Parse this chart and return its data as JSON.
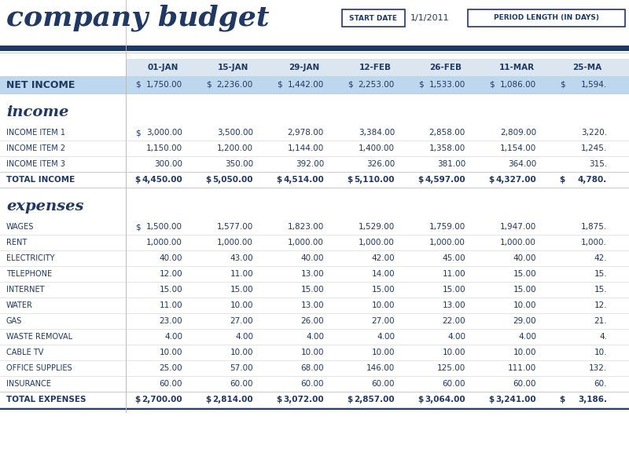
{
  "title": "company budget",
  "start_date_label": "START DATE",
  "start_date_value": "1/1/2011",
  "period_label": "PERIOD LENGTH (IN DAYS)",
  "col_headers": [
    "01-JAN",
    "15-JAN",
    "29-JAN",
    "12-FEB",
    "26-FEB",
    "11-MAR",
    "25-MA"
  ],
  "net_income": {
    "label": "NET INCOME",
    "has_dollar": [
      true,
      true,
      true,
      true,
      true,
      true,
      true
    ],
    "values": [
      "1,750.00",
      "2,236.00",
      "1,442.00",
      "2,253.00",
      "1,533.00",
      "1,086.00",
      "1,594."
    ]
  },
  "income_section": "income",
  "income_rows": [
    {
      "label": "INCOME ITEM 1",
      "has_dollar": true,
      "values": [
        "3,000.00",
        "3,500.00",
        "2,978.00",
        "3,384.00",
        "2,858.00",
        "2,809.00",
        "3,220."
      ]
    },
    {
      "label": "INCOME ITEM 2",
      "has_dollar": false,
      "values": [
        "1,150.00",
        "1,200.00",
        "1,144.00",
        "1,400.00",
        "1,358.00",
        "1,154.00",
        "1,245."
      ]
    },
    {
      "label": "INCOME ITEM 3",
      "has_dollar": false,
      "values": [
        "300.00",
        "350.00",
        "392.00",
        "326.00",
        "381.00",
        "364.00",
        "315."
      ]
    }
  ],
  "total_income": {
    "label": "TOTAL INCOME",
    "has_dollar": true,
    "values": [
      "4,450.00",
      "5,050.00",
      "4,514.00",
      "5,110.00",
      "4,597.00",
      "4,327.00",
      "4,780."
    ]
  },
  "expenses_section": "expenses",
  "expense_rows": [
    {
      "label": "WAGES",
      "has_dollar": true,
      "values": [
        "1,500.00",
        "1,577.00",
        "1,823.00",
        "1,529.00",
        "1,759.00",
        "1,947.00",
        "1,875."
      ]
    },
    {
      "label": "RENT",
      "has_dollar": false,
      "values": [
        "1,000.00",
        "1,000.00",
        "1,000.00",
        "1,000.00",
        "1,000.00",
        "1,000.00",
        "1,000."
      ]
    },
    {
      "label": "ELECTRICITY",
      "has_dollar": false,
      "values": [
        "40.00",
        "43.00",
        "40.00",
        "42.00",
        "45.00",
        "40.00",
        "42."
      ]
    },
    {
      "label": "TELEPHONE",
      "has_dollar": false,
      "values": [
        "12.00",
        "11.00",
        "13.00",
        "14.00",
        "11.00",
        "15.00",
        "15."
      ]
    },
    {
      "label": "INTERNET",
      "has_dollar": false,
      "values": [
        "15.00",
        "15.00",
        "15.00",
        "15.00",
        "15.00",
        "15.00",
        "15."
      ]
    },
    {
      "label": "WATER",
      "has_dollar": false,
      "values": [
        "11.00",
        "10.00",
        "13.00",
        "10.00",
        "13.00",
        "10.00",
        "12."
      ]
    },
    {
      "label": "GAS",
      "has_dollar": false,
      "values": [
        "23.00",
        "27.00",
        "26.00",
        "27.00",
        "22.00",
        "29.00",
        "21."
      ]
    },
    {
      "label": "WASTE REMOVAL",
      "has_dollar": false,
      "values": [
        "4.00",
        "4.00",
        "4.00",
        "4.00",
        "4.00",
        "4.00",
        "4."
      ]
    },
    {
      "label": "CABLE TV",
      "has_dollar": false,
      "values": [
        "10.00",
        "10.00",
        "10.00",
        "10.00",
        "10.00",
        "10.00",
        "10."
      ]
    },
    {
      "label": "OFFICE SUPPLIES",
      "has_dollar": false,
      "values": [
        "25.00",
        "57.00",
        "68.00",
        "146.00",
        "125.00",
        "111.00",
        "132."
      ]
    },
    {
      "label": "INSURANCE",
      "has_dollar": false,
      "values": [
        "60.00",
        "60.00",
        "60.00",
        "60.00",
        "60.00",
        "60.00",
        "60."
      ]
    }
  ],
  "total_expenses": {
    "label": "TOTAL EXPENSES",
    "has_dollar": true,
    "values": [
      "2,700.00",
      "2,814.00",
      "3,072.00",
      "2,857.00",
      "3,064.00",
      "3,241.00",
      "3,186."
    ]
  },
  "colors": {
    "dark_blue": "#1f3864",
    "net_income_bg": "#bdd7ee",
    "col_header_bg": "#dce6f1",
    "white": "#ffffff",
    "light_border": "#cccccc",
    "row_border": "#d9d9d9"
  }
}
